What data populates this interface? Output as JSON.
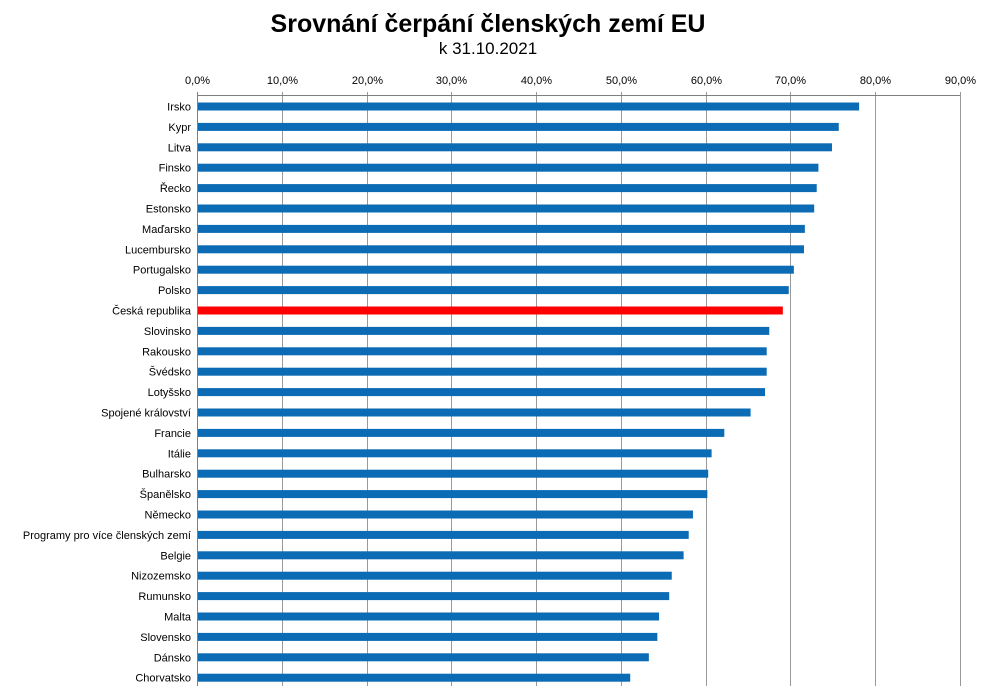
{
  "chart_data": {
    "type": "bar",
    "orientation": "horizontal",
    "title": "Srovnání čerpání členských zemí EU",
    "subtitle": "k 31.10.2021",
    "xlim": [
      0,
      0.9
    ],
    "x_ticks": [
      0,
      0.1,
      0.2,
      0.3,
      0.4,
      0.5,
      0.6,
      0.7,
      0.8,
      0.9
    ],
    "x_tick_labels": [
      "0,0%",
      "10,0%",
      "20,0%",
      "30,0%",
      "40,0%",
      "50,0%",
      "60,0%",
      "70,0%",
      "80,0%",
      "90,0%"
    ],
    "x_axis_position": "top",
    "grid": "vertical",
    "legend": "none",
    "categories": [
      "Irsko",
      "Kypr",
      "Litva",
      "Finsko",
      "Řecko",
      "Estonsko",
      "Maďarsko",
      "Lucembursko",
      "Portugalsko",
      "Polsko",
      "Česká republika",
      "Slovinsko",
      "Rakousko",
      "Švédsko",
      "Lotyšsko",
      "Spojené království",
      "Francie",
      "Itálie",
      "Bulharsko",
      "Španělsko",
      "Německo",
      "Programy pro více členských zemí",
      "Belgie",
      "Nizozemsko",
      "Rumunsko",
      "Malta",
      "Slovensko",
      "Dánsko",
      "Chorvatsko"
    ],
    "values": [
      0.781,
      0.757,
      0.749,
      0.733,
      0.731,
      0.728,
      0.717,
      0.716,
      0.704,
      0.698,
      0.691,
      0.675,
      0.672,
      0.672,
      0.67,
      0.653,
      0.622,
      0.607,
      0.603,
      0.602,
      0.585,
      0.58,
      0.574,
      0.56,
      0.557,
      0.545,
      0.543,
      0.533,
      0.511
    ],
    "bar_color": "#0b6cb5",
    "highlight_color": "#ff0000",
    "highlight_category": "Česká republika",
    "grid_color": "#999999"
  }
}
